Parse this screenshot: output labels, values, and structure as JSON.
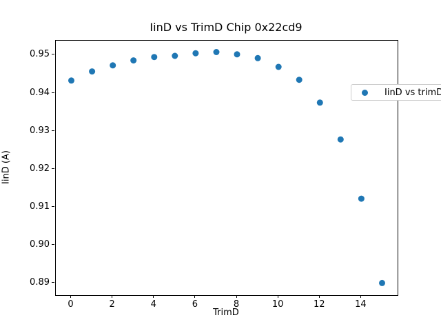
{
  "figure": {
    "background": "#ffffff",
    "axes_color": "#000000"
  },
  "chart_data": {
    "type": "scatter",
    "title": "IinD vs TrimD Chip 0x22cd9",
    "xlabel": "TrimD",
    "ylabel": "IinD (A)",
    "series": [
      {
        "name": "IinD vs trimD",
        "marker": "circle",
        "color": "#1f77b4",
        "x": [
          0,
          1,
          2,
          3,
          4,
          5,
          6,
          7,
          8,
          9,
          10,
          11,
          12,
          13,
          14,
          15
        ],
        "y": [
          0.9433,
          0.9457,
          0.9473,
          0.9486,
          0.9495,
          0.9498,
          0.9505,
          0.9508,
          0.9502,
          0.9492,
          0.9469,
          0.9435,
          0.9375,
          0.9278,
          0.9122,
          0.89
        ]
      }
    ],
    "xlim": [
      -0.75,
      15.75
    ],
    "ylim": [
      0.8868,
      0.9538
    ],
    "xticks": {
      "values": [
        0,
        2,
        4,
        6,
        8,
        10,
        12,
        14
      ],
      "labels": [
        "0",
        "2",
        "4",
        "6",
        "8",
        "10",
        "12",
        "14"
      ]
    },
    "yticks": {
      "values": [
        0.89,
        0.9,
        0.91,
        0.92,
        0.93,
        0.94,
        0.95
      ],
      "labels": [
        "0.89",
        "0.90",
        "0.91",
        "0.92",
        "0.93",
        "0.94",
        "0.95"
      ]
    },
    "grid": false,
    "legend": {
      "label": "IinD vs trimD",
      "position": "upper right"
    }
  }
}
